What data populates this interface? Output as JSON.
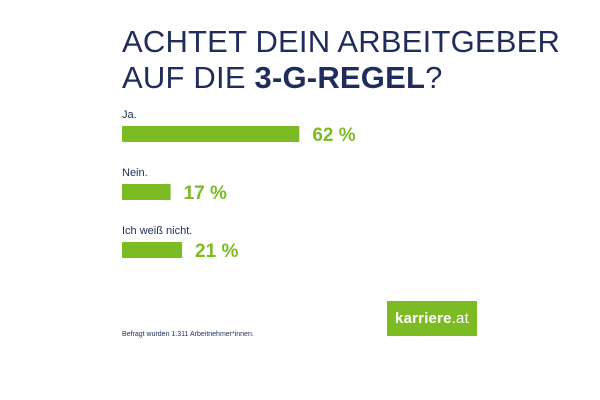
{
  "title": {
    "line1": "ACHTET DEIN ARBEITGEBER",
    "line2_prefix": "AUF DIE ",
    "line2_bold": "3-G-REGEL",
    "line2_suffix": "?"
  },
  "chart_data": {
    "type": "bar",
    "orientation": "horizontal",
    "categories": [
      "Ja.",
      "Nein.",
      "Ich weiß nicht."
    ],
    "values": [
      62,
      17,
      21
    ],
    "value_labels": [
      "62 %",
      "17 %",
      "21 %"
    ],
    "unit": "%",
    "xlim": [
      0,
      100
    ],
    "bar_color": "#7dbb25",
    "label_color": "#1f2c5c",
    "value_color": "#7dbb25",
    "grid": false,
    "legend": "none"
  },
  "footnote": "Befragt wurden 1.311 Arbeitnehmer*innen.",
  "logo": {
    "name": "karriere",
    "tld": ".at",
    "background": "#7dbb25"
  }
}
